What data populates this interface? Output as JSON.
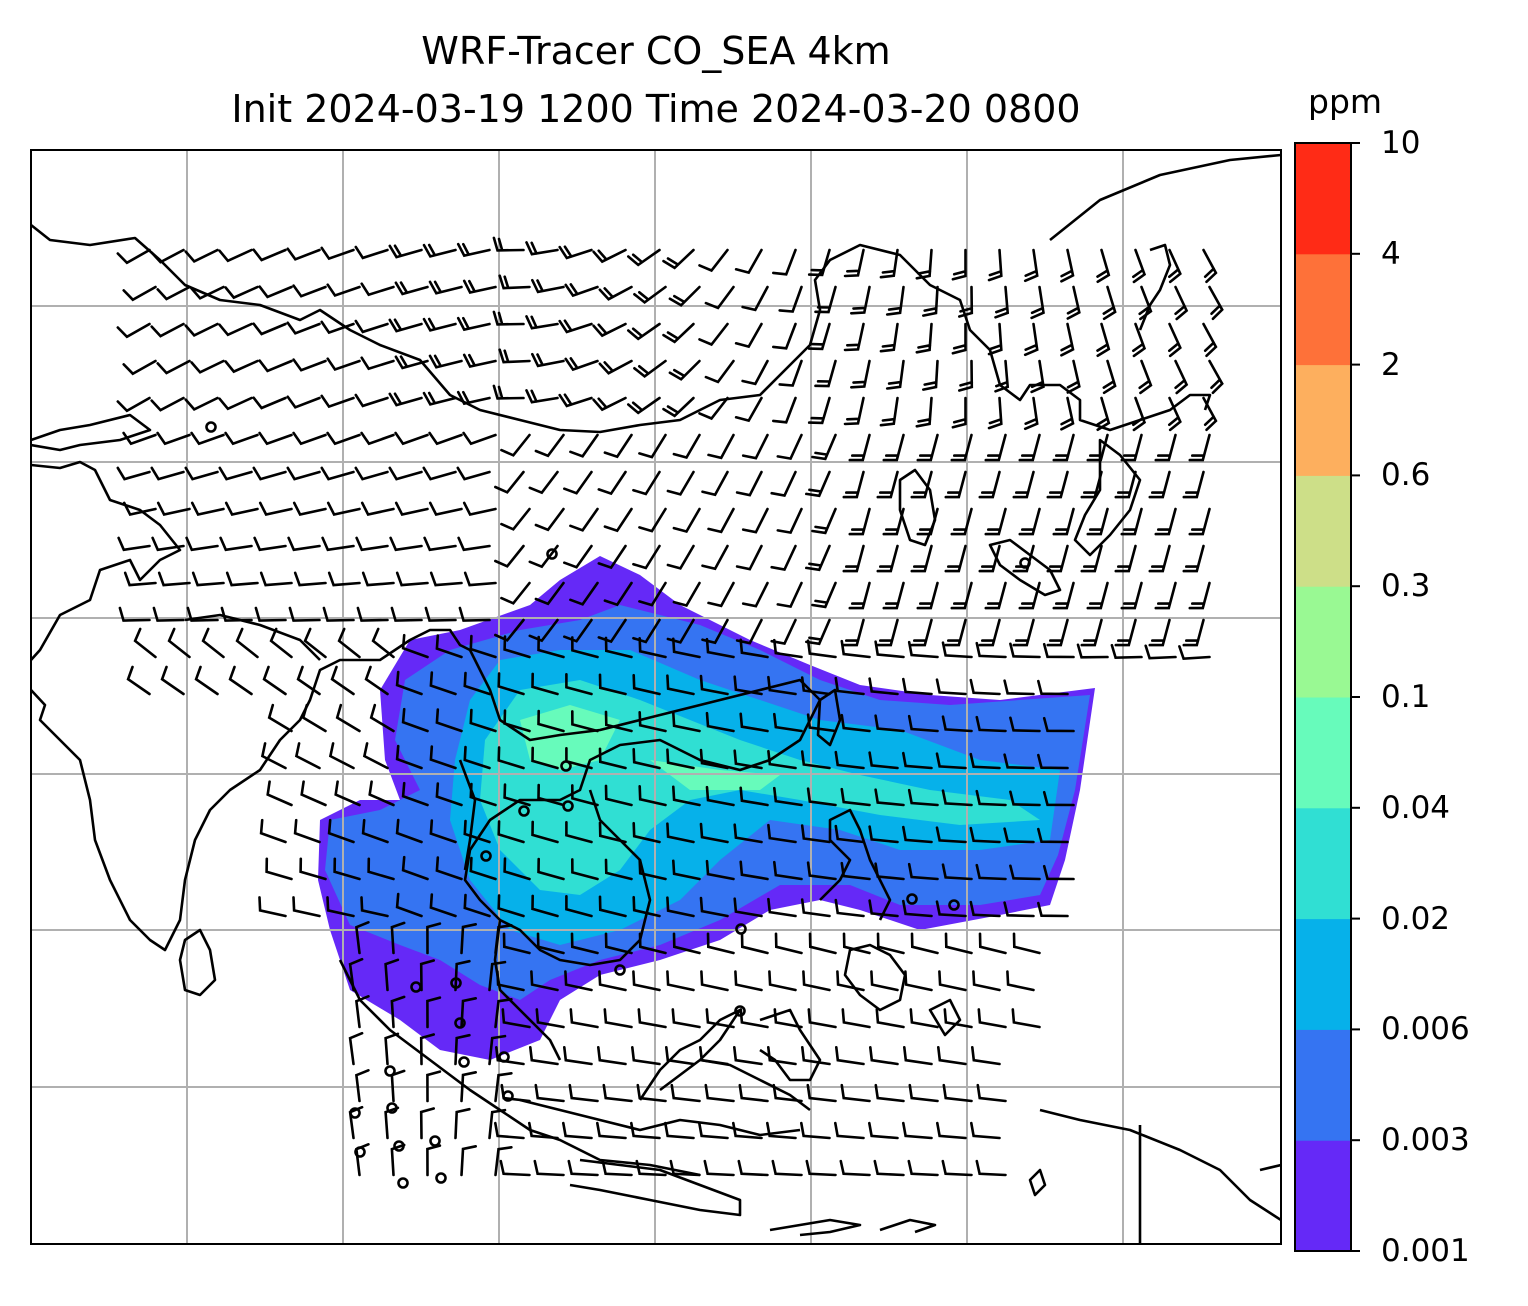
{
  "title": {
    "line1": "WRF-Tracer CO_SEA 4km",
    "line2": "Init 2024-03-19 1200 Time 2024-03-20 0800"
  },
  "colorbar": {
    "unit": "ppm",
    "ticks": [
      "0.001",
      "0.003",
      "0.006",
      "0.02",
      "0.04",
      "0.1",
      "0.3",
      "0.6",
      "2",
      "4",
      "10"
    ],
    "colors": [
      "#6529f7",
      "#3574f2",
      "#06b1ea",
      "#30dfd3",
      "#67fbbb",
      "#99f993",
      "#cddf88",
      "#fdaf5e",
      "#fe7139",
      "#ff2b16"
    ]
  },
  "map": {
    "gridlines": true,
    "layers": [
      "tracer-co-field",
      "coastlines",
      "wind-barbs"
    ]
  }
}
